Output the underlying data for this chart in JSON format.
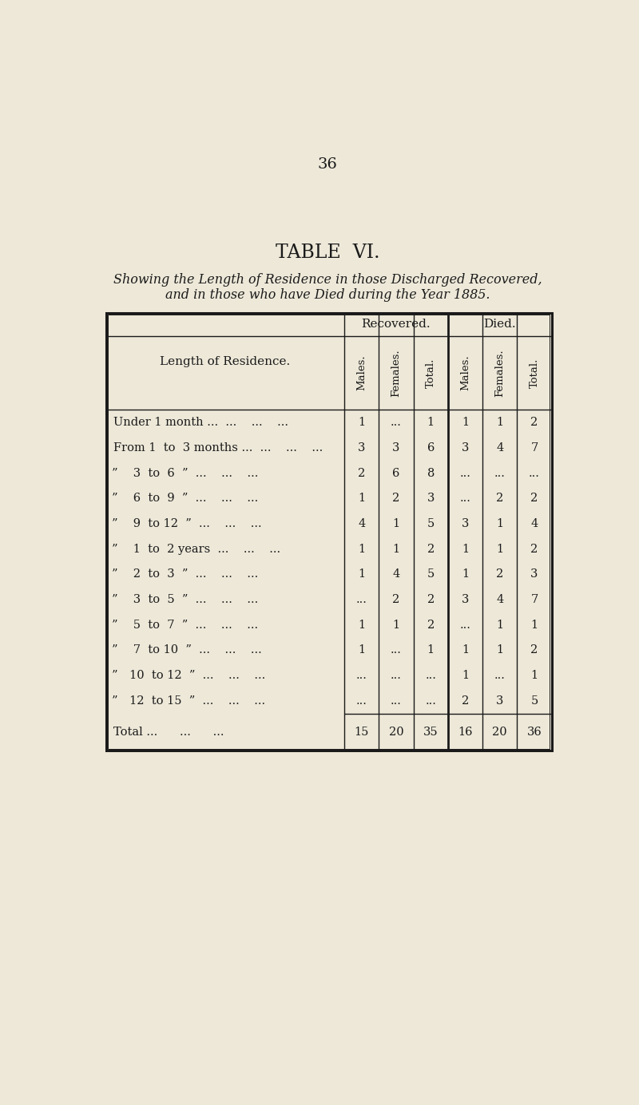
{
  "page_number": "36",
  "title": "TABLE  VI.",
  "subtitle_line1": "Showing the Length of Residence in those Discharged Recovered,",
  "subtitle_line2": "and in those who have Died during the Year 1885.",
  "bg_color": "#ede8d8",
  "header_col": "Length of Residence.",
  "group_headers": [
    "Recovered.",
    "Died."
  ],
  "col_headers": [
    "Males.",
    "Females.",
    "Total.",
    "Males.",
    "Females.",
    "Total."
  ],
  "rows": [
    {
      "label0": "Under 1 month ...",
      "label1": "...",
      "label2": "...",
      "label3": "...",
      "rec_m": "1",
      "rec_f": "...",
      "rec_t": "1",
      "die_m": "1",
      "die_f": "1",
      "die_t": "2"
    },
    {
      "label0": "From 1  to  3 months ...",
      "label1": "...",
      "label2": "...",
      "label3": "",
      "rec_m": "3",
      "rec_f": "3",
      "rec_t": "6",
      "die_m": "3",
      "die_f": "4",
      "die_t": "7"
    },
    {
      "label0": "”  3  to  6  ”",
      "label1": "...",
      "label2": "...",
      "label3": "...",
      "rec_m": "2",
      "rec_f": "6",
      "rec_t": "8",
      "die_m": "...",
      "die_f": "...",
      "die_t": "..."
    },
    {
      "label0": "”  6  to  9  ”",
      "label1": "...",
      "label2": "...",
      "label3": "...",
      "rec_m": "1",
      "rec_f": "2",
      "rec_t": "3",
      "die_m": "...",
      "die_f": "2",
      "die_t": "2"
    },
    {
      "label0": "”  9  to 12  ”",
      "label1": "...",
      "label2": "...",
      "label3": "...",
      "rec_m": "4",
      "rec_f": "1",
      "rec_t": "5",
      "die_m": "3",
      "die_f": "1",
      "die_t": "4"
    },
    {
      "label0": "”  1  to  2 years",
      "label1": "...",
      "label2": "...",
      "label3": "...",
      "rec_m": "1",
      "rec_f": "1",
      "rec_t": "2",
      "die_m": "1",
      "die_f": "1",
      "die_t": "2"
    },
    {
      "label0": "”  2  to  3  ”",
      "label1": "...",
      "label2": "...",
      "label3": "...",
      "rec_m": "1",
      "rec_f": "4",
      "rec_t": "5",
      "die_m": "1",
      "die_f": "2",
      "die_t": "3"
    },
    {
      "label0": "”  3  to  5  ”",
      "label1": "...",
      "label2": "...",
      "label3": "...",
      "rec_m": "...",
      "rec_f": "2",
      "rec_t": "2",
      "die_m": "3",
      "die_f": "4",
      "die_t": "7"
    },
    {
      "label0": "”  5  to  7  ”",
      "label1": "...",
      "label2": "...",
      "label3": "...",
      "rec_m": "1",
      "rec_f": "1",
      "rec_t": "2",
      "die_m": "...",
      "die_f": "1",
      "die_t": "1"
    },
    {
      "label0": "”  7  to 10  ”",
      "label1": "...",
      "label2": "...",
      "label3": "...",
      "rec_m": "1",
      "rec_f": "...",
      "rec_t": "1",
      "die_m": "1",
      "die_f": "1",
      "die_t": "2"
    },
    {
      "label0": "” 10  to 12  ”",
      "label1": "...",
      "label2": "...",
      "label3": "...",
      "rec_m": "...",
      "rec_f": "...",
      "rec_t": "...",
      "die_m": "1",
      "die_f": "...",
      "die_t": "1"
    },
    {
      "label0": "” 12  to 15  ”",
      "label1": "...",
      "label2": "...",
      "label3": "...",
      "rec_m": "...",
      "rec_f": "...",
      "rec_t": "...",
      "die_m": "2",
      "die_f": "3",
      "die_t": "5"
    }
  ],
  "total_row": {
    "rec_m": "15",
    "rec_f": "20",
    "rec_t": "35",
    "die_m": "16",
    "die_f": "20",
    "die_t": "36"
  }
}
